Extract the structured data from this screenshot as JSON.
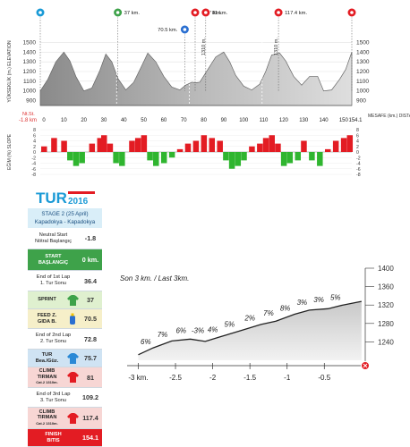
{
  "chart_data": [
    {
      "type": "area",
      "id": "elevation_profile",
      "ylabel": "YÜKSEKLİK (m.) ELEVATION",
      "xlabel": "MESAFE (km.) DISTANCE",
      "ylim": [
        850,
        1550
      ],
      "xlim": [
        -1.8,
        154.1
      ],
      "yticks": [
        900,
        1000,
        1100,
        1200,
        1300,
        1400,
        1500
      ],
      "xticks": [
        "-1.8 km",
        "0",
        "10",
        "20",
        "30",
        "40",
        "50",
        "60",
        "70",
        "80",
        "90",
        "100",
        "110",
        "120",
        "130",
        "140",
        "150",
        "154.1"
      ],
      "start_label": "Nt.St.",
      "x": [
        -1.8,
        2,
        6,
        10,
        13,
        16,
        20,
        24,
        28,
        31,
        34,
        37,
        41,
        45,
        49,
        52,
        56,
        60,
        64,
        68,
        71,
        74,
        76,
        78,
        82,
        86,
        90,
        93,
        96,
        100,
        104,
        108,
        111,
        114,
        118,
        121,
        125,
        129,
        133,
        137,
        140,
        144,
        148,
        151,
        154.1
      ],
      "y": [
        1000,
        1120,
        1300,
        1400,
        1310,
        1150,
        1000,
        1030,
        1210,
        1380,
        1300,
        1130,
        1010,
        1090,
        1260,
        1390,
        1300,
        1150,
        1040,
        1010,
        1060,
        1090,
        1085,
        1090,
        1220,
        1350,
        1400,
        1300,
        1160,
        1050,
        1010,
        1070,
        1200,
        1370,
        1390,
        1310,
        1150,
        1060,
        1150,
        1150,
        1000,
        1010,
        1120,
        1220,
        1400
      ],
      "markers": [
        {
          "type": "start",
          "color": "#1a9ad6",
          "x": -1.8
        },
        {
          "type": "sprint",
          "color": "#3ea24a",
          "x": 37,
          "label": "37 km."
        },
        {
          "type": "feed",
          "color": "#2a6fd1",
          "x": 70.5,
          "label": "70.5 km."
        },
        {
          "type": "tur",
          "color": "#e31c23",
          "x": 75.7,
          "label": "75.7 km."
        },
        {
          "type": "climb",
          "color": "#e31c23",
          "x": 81,
          "label": "81 km."
        },
        {
          "type": "climb",
          "color": "#e31c23",
          "x": 117.4,
          "label": "117.4 km."
        },
        {
          "type": "finish",
          "color": "#e31c23",
          "x": 154.1
        }
      ],
      "climb_labels": [
        "1310 m.",
        "1310 m."
      ]
    },
    {
      "type": "bar",
      "id": "slope_profile",
      "ylabel": "EĞİM (%) SLOPE",
      "ylim": [
        -8,
        8
      ],
      "yticks": [
        -8,
        -6,
        -4,
        -2,
        0,
        2,
        4,
        6,
        8
      ],
      "colors": {
        "positive": "#e31c23",
        "negative": "#2fb52f"
      },
      "x": [
        0,
        5,
        10,
        13,
        16,
        19,
        24,
        28,
        30,
        33,
        36,
        39,
        44,
        47,
        50,
        53,
        56,
        60,
        64,
        68,
        72,
        76,
        80,
        84,
        88,
        91,
        94,
        97,
        100,
        104,
        108,
        111,
        114,
        117,
        120,
        123,
        127,
        130,
        134,
        138,
        142,
        146,
        150,
        153
      ],
      "values": [
        2,
        5,
        4,
        -3,
        -5,
        -4,
        3,
        5,
        6,
        3,
        -4,
        -5,
        4,
        5,
        6,
        -3,
        -5,
        -4,
        -2,
        1,
        3,
        4,
        6,
        5,
        4,
        -3,
        -6,
        -5,
        -3,
        2,
        3,
        5,
        6,
        3,
        -5,
        -4,
        -3,
        4,
        -3,
        -5,
        1,
        4,
        5,
        6
      ]
    },
    {
      "type": "line",
      "id": "last_3km",
      "title": "Son 3 km. / Last 3km.",
      "ylim": [
        1200,
        1400
      ],
      "yticks": [
        1240,
        1280,
        1320,
        1360,
        1400
      ],
      "xticks": [
        "-3 km.",
        "-2.5",
        "-2",
        "-1.5",
        "-1",
        "-0.5"
      ],
      "x": [
        -3.0,
        -2.8,
        -2.55,
        -2.3,
        -2.1,
        -1.9,
        -1.65,
        -1.35,
        -1.15,
        -0.9,
        -0.7,
        -0.45,
        -0.25,
        0.0
      ],
      "y": [
        1212,
        1227,
        1242,
        1246,
        1241,
        1251,
        1263,
        1278,
        1285,
        1300,
        1309,
        1312,
        1320,
        1328
      ],
      "slope_labels": [
        "6%",
        "7%",
        "6%",
        "-3%",
        "4%",
        "5%",
        "2%",
        "7%",
        "8%",
        "3%",
        "3%",
        "5%"
      ]
    }
  ],
  "panel": {
    "logo_text": "TUR",
    "logo_year": "2016",
    "stage": "STAGE 2 (25 April)",
    "route": "Kapadokya - Kapadokya",
    "rows": [
      {
        "label1": "Neutral Start",
        "label2": "Nötral Başlangıç",
        "value": "-1.8",
        "style": ""
      },
      {
        "label1": "START",
        "label2": "BAŞLANGIÇ",
        "value": "0 km.",
        "style": "green bold"
      },
      {
        "label1": "End of 1st Lap",
        "label2": "1. Tur Sonu",
        "value": "36.4",
        "style": ""
      },
      {
        "label1": "SPRINT",
        "label2": "",
        "value": "37",
        "style": "lightgreen bold",
        "icon": "green-jersey-icon"
      },
      {
        "label1": "FEED Z.",
        "label2": "GIDA B.",
        "value": "70.5",
        "style": "lightyellow bold",
        "icon": "bottle-icon"
      },
      {
        "label1": "End of 2nd Lap",
        "label2": "2. Tur Sonu",
        "value": "72.8",
        "style": ""
      },
      {
        "label1": "TUR",
        "label2": "Bea./Güz.",
        "value": "75.7",
        "style": "lightblue bold",
        "icon": "blue-jersey-icon"
      },
      {
        "label1": "CLIMB",
        "label2": "TIRMAN",
        "label3": "Cat.2 1310m.",
        "value": "81",
        "style": "pink bold",
        "icon": "red-jersey-icon"
      },
      {
        "label1": "End of 3rd Lap",
        "label2": "3. Tur Sonu",
        "value": "109.2",
        "style": ""
      },
      {
        "label1": "CLIMB",
        "label2": "TIRMAN",
        "label3": "Cat.2 1310m.",
        "value": "117.4",
        "style": "pink bold",
        "icon": "red-jersey-icon"
      },
      {
        "label1": "FINISH",
        "label2": "BITIS",
        "value": "154.1",
        "style": "red bold"
      }
    ]
  }
}
